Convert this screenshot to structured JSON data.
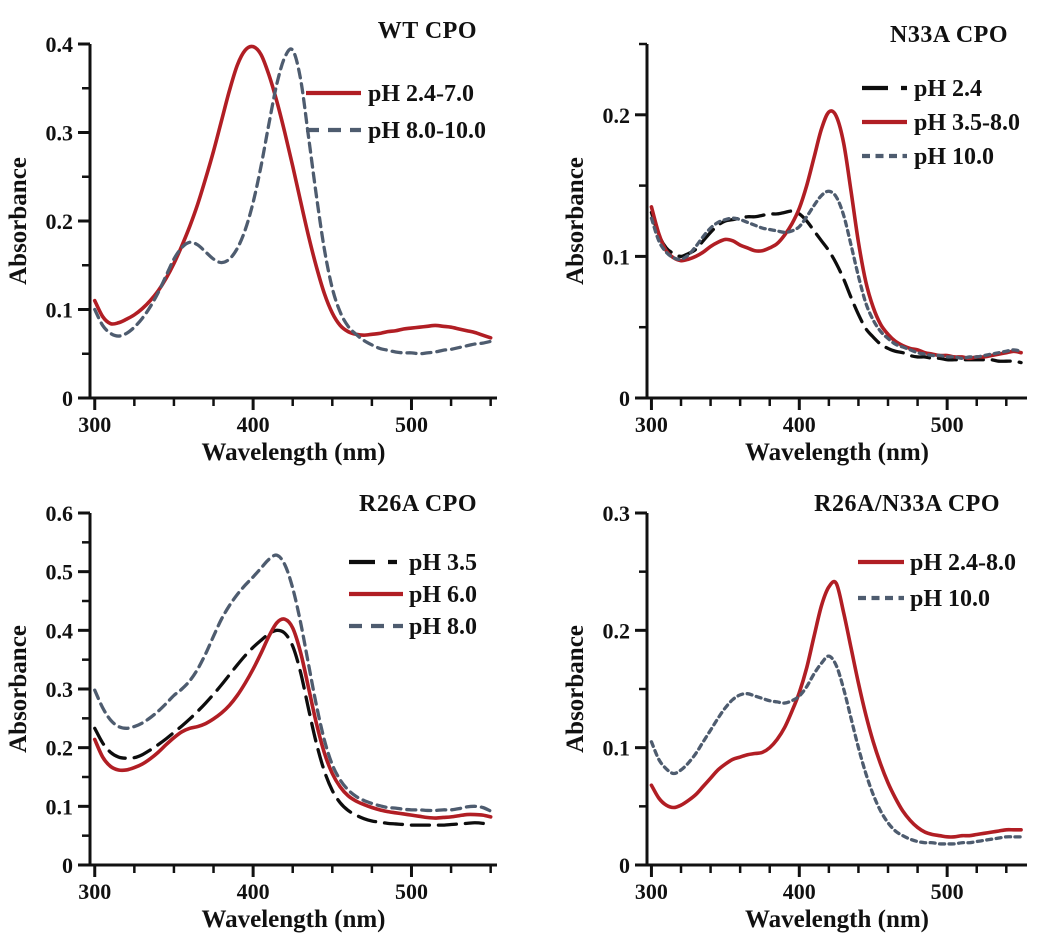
{
  "figure": {
    "background": "#ffffff",
    "panel_count": 4
  },
  "colors": {
    "red": "#B11E24",
    "slate": "#4E5C6F",
    "black": "#0D0D0D",
    "axis": "#111111",
    "text": "#111111"
  },
  "chart_data": [
    {
      "id": "wt-cpo",
      "type": "line",
      "title": "WT CPO",
      "xlabel": "Wavelength (nm)",
      "ylabel": "Absorbance",
      "xlim": [
        297,
        554
      ],
      "ylim": [
        0,
        0.4
      ],
      "x_label_ticks": [
        300,
        400,
        500
      ],
      "x_tick_step": 25,
      "x_tick_max": 550,
      "y_label_ticks": [
        0,
        0.1,
        0.2,
        0.3,
        0.4
      ],
      "y_tick_step": 0.05,
      "grid": "off",
      "legend_position": "top-right-inside",
      "x": [
        300,
        305,
        310,
        315,
        320,
        325,
        330,
        335,
        340,
        345,
        350,
        355,
        360,
        365,
        370,
        375,
        380,
        385,
        390,
        395,
        400,
        405,
        410,
        415,
        420,
        425,
        430,
        435,
        440,
        445,
        450,
        455,
        460,
        465,
        470,
        475,
        480,
        485,
        490,
        495,
        500,
        505,
        510,
        515,
        520,
        525,
        530,
        535,
        540,
        545,
        550
      ],
      "series": [
        {
          "name": "pH 2.4-7.0",
          "color_key": "red",
          "dash": "solid",
          "values": [
            0.11,
            0.092,
            0.084,
            0.085,
            0.089,
            0.094,
            0.101,
            0.11,
            0.121,
            0.135,
            0.152,
            0.172,
            0.194,
            0.219,
            0.248,
            0.279,
            0.313,
            0.347,
            0.376,
            0.393,
            0.397,
            0.388,
            0.365,
            0.335,
            0.3,
            0.262,
            0.222,
            0.183,
            0.148,
            0.118,
            0.096,
            0.082,
            0.075,
            0.072,
            0.071,
            0.072,
            0.073,
            0.075,
            0.076,
            0.078,
            0.079,
            0.08,
            0.081,
            0.082,
            0.081,
            0.08,
            0.078,
            0.076,
            0.074,
            0.071,
            0.068
          ]
        },
        {
          "name": "pH 8.0-10.0",
          "color_key": "slate",
          "dash": "medium-dash",
          "values": [
            0.1,
            0.082,
            0.073,
            0.07,
            0.073,
            0.08,
            0.09,
            0.103,
            0.119,
            0.138,
            0.157,
            0.17,
            0.176,
            0.173,
            0.165,
            0.157,
            0.153,
            0.157,
            0.169,
            0.19,
            0.221,
            0.262,
            0.31,
            0.355,
            0.385,
            0.393,
            0.36,
            0.295,
            0.228,
            0.168,
            0.124,
            0.097,
            0.081,
            0.072,
            0.065,
            0.06,
            0.056,
            0.054,
            0.052,
            0.051,
            0.051,
            0.05,
            0.051,
            0.052,
            0.054,
            0.055,
            0.057,
            0.059,
            0.061,
            0.062,
            0.064
          ]
        }
      ]
    },
    {
      "id": "n33a-cpo",
      "type": "line",
      "title": "N33A CPO",
      "xlabel": "Wavelength (nm)",
      "ylabel": "Absorbance",
      "xlim": [
        297,
        554
      ],
      "ylim": [
        0,
        0.25
      ],
      "x_label_ticks": [
        300,
        400,
        500
      ],
      "x_tick_step": 20,
      "x_tick_max": 540,
      "y_label_ticks": [
        0,
        0.1,
        0.2
      ],
      "y_tick_step": 0.05,
      "grid": "off",
      "legend_position": "top-right-inside",
      "x": [
        300,
        305,
        310,
        315,
        320,
        325,
        330,
        335,
        340,
        345,
        350,
        355,
        360,
        365,
        370,
        375,
        380,
        385,
        390,
        395,
        400,
        405,
        410,
        415,
        420,
        425,
        430,
        435,
        440,
        445,
        450,
        455,
        460,
        465,
        470,
        475,
        480,
        485,
        490,
        495,
        500,
        505,
        510,
        515,
        520,
        525,
        530,
        535,
        540,
        545,
        550
      ],
      "series": [
        {
          "name": "pH 2.4",
          "color_key": "black",
          "dash": "long-dash",
          "values": [
            0.131,
            0.115,
            0.106,
            0.102,
            0.1,
            0.102,
            0.105,
            0.111,
            0.117,
            0.122,
            0.125,
            0.126,
            0.127,
            0.128,
            0.128,
            0.129,
            0.13,
            0.13,
            0.131,
            0.132,
            0.13,
            0.125,
            0.118,
            0.111,
            0.104,
            0.095,
            0.084,
            0.071,
            0.059,
            0.049,
            0.043,
            0.038,
            0.035,
            0.033,
            0.032,
            0.03,
            0.029,
            0.029,
            0.028,
            0.028,
            0.027,
            0.027,
            0.027,
            0.027,
            0.027,
            0.027,
            0.027,
            0.026,
            0.026,
            0.026,
            0.025
          ]
        },
        {
          "name": "pH 3.5-8.0",
          "color_key": "red",
          "dash": "solid",
          "values": [
            0.135,
            0.116,
            0.104,
            0.099,
            0.097,
            0.098,
            0.1,
            0.103,
            0.107,
            0.11,
            0.112,
            0.111,
            0.108,
            0.106,
            0.104,
            0.104,
            0.106,
            0.109,
            0.115,
            0.123,
            0.134,
            0.15,
            0.17,
            0.19,
            0.202,
            0.199,
            0.18,
            0.146,
            0.11,
            0.082,
            0.064,
            0.052,
            0.045,
            0.04,
            0.037,
            0.035,
            0.034,
            0.032,
            0.031,
            0.03,
            0.03,
            0.029,
            0.029,
            0.028,
            0.029,
            0.029,
            0.03,
            0.031,
            0.032,
            0.033,
            0.032
          ]
        },
        {
          "name": "pH 10.0",
          "color_key": "slate",
          "dash": "short-dash",
          "values": [
            0.127,
            0.111,
            0.103,
            0.099,
            0.098,
            0.101,
            0.107,
            0.114,
            0.12,
            0.124,
            0.126,
            0.127,
            0.126,
            0.124,
            0.122,
            0.12,
            0.119,
            0.118,
            0.117,
            0.118,
            0.121,
            0.128,
            0.136,
            0.143,
            0.146,
            0.142,
            0.129,
            0.108,
            0.086,
            0.067,
            0.055,
            0.047,
            0.042,
            0.038,
            0.036,
            0.034,
            0.032,
            0.031,
            0.03,
            0.03,
            0.029,
            0.029,
            0.028,
            0.029,
            0.029,
            0.03,
            0.031,
            0.032,
            0.033,
            0.034,
            0.033
          ]
        }
      ]
    },
    {
      "id": "r26a-cpo",
      "type": "line",
      "title": "R26A CPO",
      "xlabel": "Wavelength (nm)",
      "ylabel": "Absorbance",
      "xlim": [
        297,
        554
      ],
      "ylim": [
        0,
        0.6
      ],
      "x_label_ticks": [
        300,
        400,
        500
      ],
      "x_tick_step": 25,
      "x_tick_max": 550,
      "y_label_ticks": [
        0,
        0.1,
        0.2,
        0.3,
        0.4,
        0.5,
        0.6
      ],
      "y_tick_step": 0.05,
      "grid": "off",
      "legend_position": "top-right-inside",
      "x": [
        300,
        305,
        310,
        315,
        320,
        325,
        330,
        335,
        340,
        345,
        350,
        355,
        360,
        365,
        370,
        375,
        380,
        385,
        390,
        395,
        400,
        405,
        410,
        415,
        420,
        425,
        430,
        435,
        440,
        445,
        450,
        455,
        460,
        465,
        470,
        475,
        480,
        485,
        490,
        495,
        500,
        505,
        510,
        515,
        520,
        525,
        530,
        535,
        540,
        545,
        550
      ],
      "series": [
        {
          "name": "pH 3.5",
          "color_key": "black",
          "dash": "long-dash",
          "values": [
            0.233,
            0.208,
            0.192,
            0.184,
            0.182,
            0.183,
            0.188,
            0.196,
            0.205,
            0.215,
            0.226,
            0.237,
            0.249,
            0.262,
            0.276,
            0.291,
            0.307,
            0.324,
            0.341,
            0.357,
            0.371,
            0.383,
            0.394,
            0.4,
            0.395,
            0.373,
            0.328,
            0.266,
            0.207,
            0.16,
            0.127,
            0.106,
            0.093,
            0.085,
            0.079,
            0.075,
            0.073,
            0.071,
            0.07,
            0.069,
            0.068,
            0.068,
            0.068,
            0.068,
            0.068,
            0.069,
            0.07,
            0.071,
            0.072,
            0.071,
            0.068
          ]
        },
        {
          "name": "pH 6.0",
          "color_key": "red",
          "dash": "solid",
          "values": [
            0.214,
            0.184,
            0.168,
            0.162,
            0.162,
            0.166,
            0.172,
            0.181,
            0.192,
            0.205,
            0.217,
            0.227,
            0.233,
            0.236,
            0.241,
            0.249,
            0.259,
            0.272,
            0.289,
            0.31,
            0.334,
            0.361,
            0.39,
            0.413,
            0.419,
            0.404,
            0.362,
            0.302,
            0.241,
            0.191,
            0.156,
            0.133,
            0.118,
            0.109,
            0.103,
            0.098,
            0.094,
            0.091,
            0.089,
            0.087,
            0.085,
            0.083,
            0.081,
            0.08,
            0.081,
            0.082,
            0.084,
            0.086,
            0.086,
            0.085,
            0.082
          ]
        },
        {
          "name": "pH 8.0",
          "color_key": "slate",
          "dash": "medium-dash",
          "values": [
            0.298,
            0.268,
            0.247,
            0.236,
            0.233,
            0.236,
            0.242,
            0.251,
            0.262,
            0.275,
            0.289,
            0.3,
            0.314,
            0.334,
            0.36,
            0.39,
            0.419,
            0.442,
            0.461,
            0.477,
            0.491,
            0.506,
            0.521,
            0.528,
            0.512,
            0.472,
            0.413,
            0.342,
            0.272,
            0.213,
            0.171,
            0.145,
            0.128,
            0.117,
            0.11,
            0.105,
            0.101,
            0.098,
            0.097,
            0.095,
            0.094,
            0.094,
            0.093,
            0.093,
            0.094,
            0.094,
            0.096,
            0.099,
            0.1,
            0.098,
            0.092
          ]
        }
      ]
    },
    {
      "id": "r26a-n33a-cpo",
      "type": "line",
      "title": "R26A/N33A CPO",
      "xlabel": "Wavelength (nm)",
      "ylabel": "Absorbance",
      "xlim": [
        297,
        554
      ],
      "ylim": [
        0,
        0.3
      ],
      "x_label_ticks": [
        300,
        400,
        500
      ],
      "x_tick_step": 20,
      "x_tick_max": 540,
      "y_label_ticks": [
        0,
        0.1,
        0.2,
        0.3
      ],
      "y_tick_step": 0.05,
      "grid": "off",
      "legend_position": "top-right-inside",
      "x": [
        300,
        305,
        310,
        315,
        320,
        325,
        330,
        335,
        340,
        345,
        350,
        355,
        360,
        365,
        370,
        375,
        380,
        385,
        390,
        395,
        400,
        405,
        410,
        415,
        420,
        425,
        430,
        435,
        440,
        445,
        450,
        455,
        460,
        465,
        470,
        475,
        480,
        485,
        490,
        495,
        500,
        505,
        510,
        515,
        520,
        525,
        530,
        535,
        540,
        545,
        550
      ],
      "series": [
        {
          "name": "pH 2.4-8.0",
          "color_key": "red",
          "dash": "solid",
          "values": [
            0.068,
            0.057,
            0.051,
            0.049,
            0.051,
            0.055,
            0.06,
            0.067,
            0.074,
            0.081,
            0.086,
            0.09,
            0.092,
            0.094,
            0.095,
            0.096,
            0.1,
            0.107,
            0.117,
            0.131,
            0.147,
            0.168,
            0.195,
            0.221,
            0.237,
            0.24,
            0.215,
            0.185,
            0.155,
            0.128,
            0.105,
            0.086,
            0.07,
            0.057,
            0.046,
            0.038,
            0.032,
            0.028,
            0.026,
            0.025,
            0.024,
            0.024,
            0.025,
            0.025,
            0.026,
            0.027,
            0.028,
            0.029,
            0.03,
            0.03,
            0.03
          ]
        },
        {
          "name": "pH 10.0",
          "color_key": "slate",
          "dash": "short-dash",
          "values": [
            0.105,
            0.09,
            0.082,
            0.078,
            0.081,
            0.087,
            0.095,
            0.105,
            0.115,
            0.125,
            0.134,
            0.141,
            0.145,
            0.146,
            0.144,
            0.142,
            0.14,
            0.139,
            0.138,
            0.14,
            0.144,
            0.152,
            0.163,
            0.172,
            0.178,
            0.17,
            0.15,
            0.125,
            0.1,
            0.078,
            0.06,
            0.046,
            0.036,
            0.029,
            0.025,
            0.022,
            0.02,
            0.019,
            0.019,
            0.018,
            0.018,
            0.018,
            0.019,
            0.019,
            0.02,
            0.021,
            0.022,
            0.023,
            0.024,
            0.024,
            0.024
          ]
        }
      ]
    }
  ]
}
